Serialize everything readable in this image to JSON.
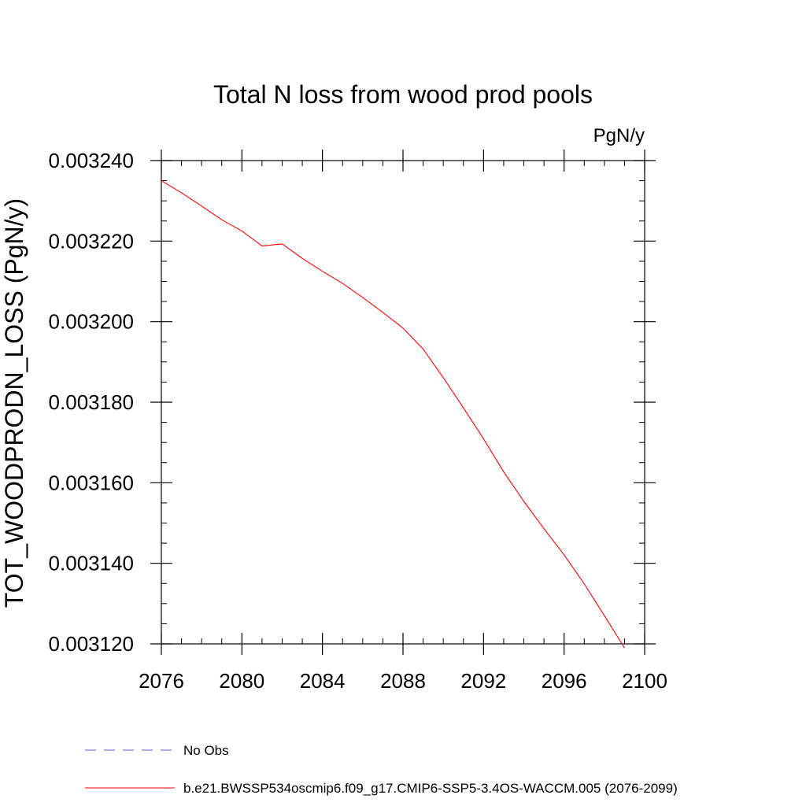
{
  "chart_data": {
    "type": "line",
    "title": "Total N loss from wood prod pools",
    "units": "PgN/y",
    "ylabel": "TOT_WOODPRODN_LOSS  (PgN/y)",
    "xlabel": "",
    "xlim": [
      2076,
      2100
    ],
    "ylim": [
      0.00312,
      0.00324
    ],
    "x_ticks": [
      2076,
      2080,
      2084,
      2088,
      2092,
      2096,
      2100
    ],
    "x_tick_labels": [
      "2076",
      "2080",
      "2084",
      "2088",
      "2092",
      "2096",
      "2100"
    ],
    "y_ticks": [
      0.00312,
      0.00314,
      0.00316,
      0.00318,
      0.0032,
      0.00322,
      0.00324
    ],
    "y_tick_labels": [
      "0.003120",
      "0.003140",
      "0.003160",
      "0.003180",
      "0.003200",
      "0.003220",
      "0.003240"
    ],
    "grid": false,
    "legend_position": "bottom",
    "series": [
      {
        "name": "b.e21.BWSSP534oscmip6.f09_g17.CMIP6-SSP5-3.4OS-WACCM.005 (2076-2099)",
        "color": "#ff0000",
        "style": "solid",
        "x": [
          2076,
          2077,
          2078,
          2079,
          2080,
          2081,
          2082,
          2083,
          2084,
          2085,
          2086,
          2087,
          2088,
          2089,
          2090,
          2091,
          2092,
          2093,
          2094,
          2095,
          2096,
          2097,
          2098,
          2099
        ],
        "y": [
          0.003235,
          0.003232,
          0.0032287,
          0.0032253,
          0.0032225,
          0.0032188,
          0.0032193,
          0.0032157,
          0.0032125,
          0.0032095,
          0.003206,
          0.0032023,
          0.0031984,
          0.0031932,
          0.0031861,
          0.0031786,
          0.0031709,
          0.0031627,
          0.0031554,
          0.0031486,
          0.0031421,
          0.0031349,
          0.003127,
          0.003119
        ]
      },
      {
        "name": "No Obs",
        "color": "#6a5acd",
        "style": "dashed",
        "x": [],
        "y": []
      }
    ]
  }
}
